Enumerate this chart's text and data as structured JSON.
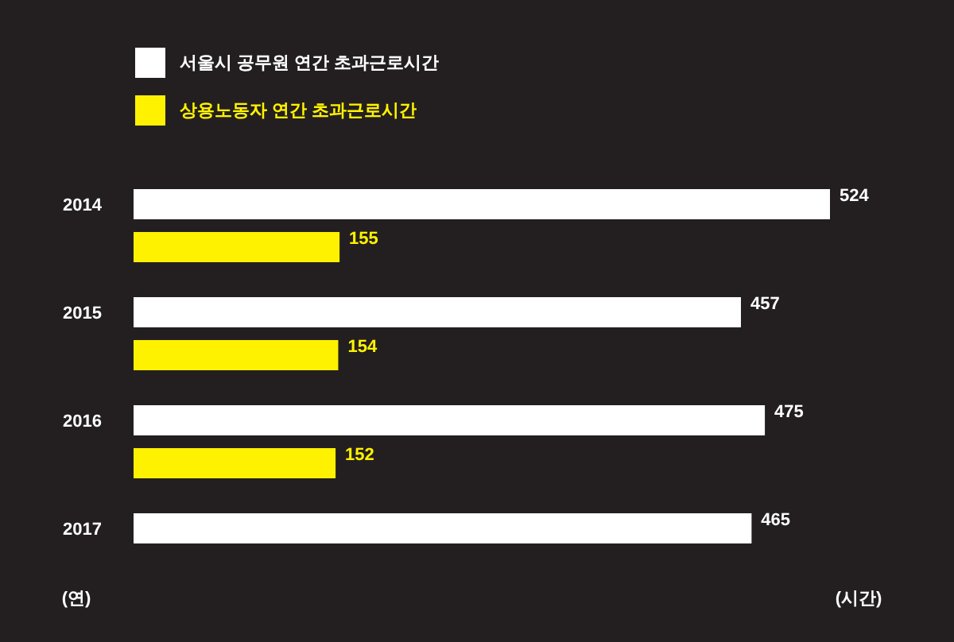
{
  "chart_data": {
    "type": "bar",
    "orientation": "horizontal",
    "categories": [
      "2014",
      "2015",
      "2016",
      "2017"
    ],
    "series": [
      {
        "name": "서울시 공무원 연간 초과근로시간",
        "color": "#ffffff",
        "values": [
          524,
          457,
          475,
          465
        ]
      },
      {
        "name": "상용노동자 연간 초과근로시간",
        "color": "#fff200",
        "values": [
          155,
          154,
          152,
          null
        ]
      }
    ],
    "data_labels": true,
    "legend": "top left",
    "xlabel": "(시간)",
    "ylabel": "(연)"
  }
}
